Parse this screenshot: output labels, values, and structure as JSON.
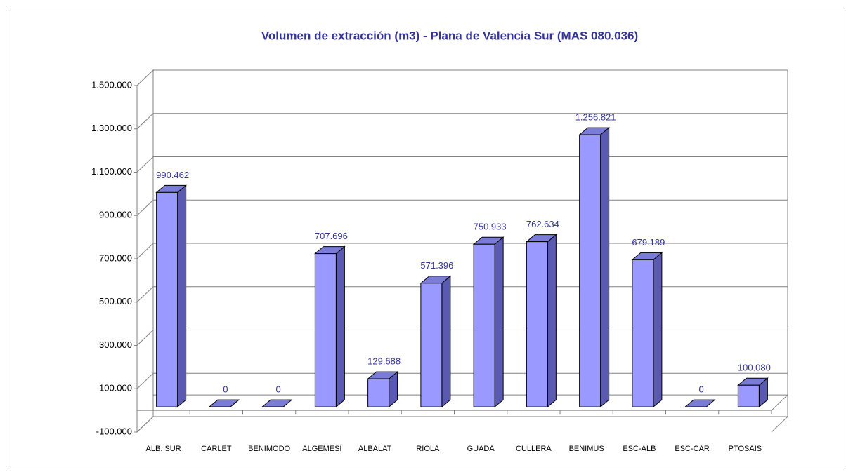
{
  "chart_data": {
    "type": "bar3d",
    "title": "Volumen de extracción (m3) - Plana de Valencia Sur (MAS 080.036)",
    "categories": [
      "ALB. SUR",
      "CARLET",
      "BENIMODO",
      "ALGEMESÍ",
      "ALBALAT",
      "RIOLA",
      "GUADA",
      "CULLERA",
      "BENIMUS",
      "ESC-ALB",
      "ESC-CAR",
      "PTOSAIS"
    ],
    "values": [
      990462,
      0,
      0,
      707696,
      129688,
      571396,
      750933,
      762634,
      1256821,
      679189,
      0,
      100080
    ],
    "value_labels": [
      "990.462",
      "0",
      "0",
      "707.696",
      "129.688",
      "571.396",
      "750.933",
      "762.634",
      "1.256.821",
      "679.189",
      "0",
      "100.080"
    ],
    "color": "#9999ff",
    "ylim": [
      -100000,
      1500000
    ],
    "yticks": [
      {
        "value": -100000,
        "label": "-100.000"
      },
      {
        "value": 100000,
        "label": "100.000"
      },
      {
        "value": 300000,
        "label": "300.000"
      },
      {
        "value": 500000,
        "label": "500.000"
      },
      {
        "value": 700000,
        "label": "700.000"
      },
      {
        "value": 900000,
        "label": "900.000"
      },
      {
        "value": 1100000,
        "label": "1.100.000"
      },
      {
        "value": 1300000,
        "label": "1.300.000"
      },
      {
        "value": 1500000,
        "label": "1.500.000"
      }
    ],
    "grid": true
  }
}
